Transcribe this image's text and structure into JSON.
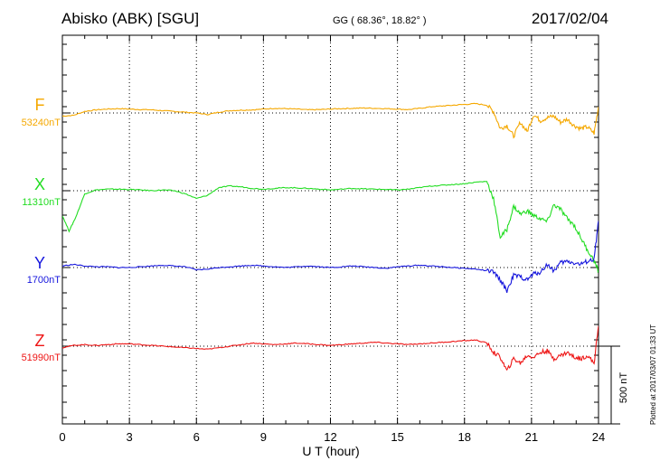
{
  "header": {
    "station": "Abisko (ABK)  [SGU]",
    "coords": "GG ( 68.36°,  18.82° )",
    "date": "2017/02/04"
  },
  "plotted_note": "Plotted at 2017/03/07 01:33 UT",
  "scale_label": "500 nT",
  "chart_data": {
    "type": "line",
    "xlabel": "U T (hour)",
    "xlim": [
      0,
      24
    ],
    "xticks": [
      0,
      3,
      6,
      9,
      12,
      15,
      18,
      21,
      24
    ],
    "scale_bar_nT": 500,
    "grid": "dotted",
    "series": [
      {
        "name": "F",
        "baseline_label": "53240nT",
        "color": "#f5a800",
        "x": [
          0,
          0.5,
          1,
          1.5,
          2,
          2.5,
          3,
          3.5,
          4,
          4.5,
          5,
          5.5,
          6,
          6.5,
          7,
          7.5,
          8,
          8.5,
          9,
          9.5,
          10,
          10.5,
          11,
          11.5,
          12,
          12.5,
          13,
          13.5,
          14,
          14.5,
          15,
          15.5,
          16,
          16.5,
          17,
          17.5,
          18,
          18.5,
          19,
          19.3,
          19.6,
          19.9,
          20.2,
          20.5,
          20.8,
          21.1,
          21.4,
          21.7,
          22,
          22.3,
          22.6,
          22.9,
          23.2,
          23.5,
          23.8,
          24
        ],
        "y": [
          -20,
          -15,
          10,
          20,
          25,
          28,
          25,
          22,
          20,
          15,
          10,
          5,
          0,
          -10,
          5,
          15,
          18,
          20,
          25,
          30,
          28,
          25,
          20,
          22,
          25,
          28,
          30,
          32,
          30,
          28,
          25,
          22,
          30,
          40,
          45,
          50,
          55,
          60,
          50,
          10,
          -100,
          -80,
          -150,
          -60,
          -120,
          -10,
          -50,
          -30,
          -20,
          -60,
          -40,
          -80,
          -100,
          -90,
          -130,
          40
        ]
      },
      {
        "name": "X",
        "baseline_label": "11310nT",
        "color": "#22dd22",
        "x": [
          0,
          0.3,
          0.6,
          1,
          1.5,
          2,
          2.5,
          3,
          3.5,
          4,
          4.5,
          5,
          5.5,
          6,
          6.5,
          7,
          7.5,
          8,
          8.5,
          9,
          9.5,
          10,
          10.5,
          11,
          11.5,
          12,
          12.5,
          13,
          13.5,
          14,
          14.5,
          15,
          15.5,
          16,
          16.5,
          17,
          17.5,
          18,
          18.5,
          19,
          19.3,
          19.6,
          19.9,
          20.2,
          20.5,
          20.8,
          21.1,
          21.4,
          21.7,
          22,
          22.3,
          22.6,
          22.9,
          23.2,
          23.5,
          23.8,
          24
        ],
        "y": [
          -160,
          -260,
          -170,
          -20,
          5,
          10,
          10,
          8,
          5,
          0,
          5,
          0,
          -20,
          -50,
          -30,
          20,
          30,
          25,
          15,
          10,
          15,
          20,
          18,
          15,
          10,
          5,
          10,
          15,
          12,
          10,
          8,
          5,
          10,
          20,
          30,
          35,
          40,
          45,
          55,
          60,
          -50,
          -300,
          -250,
          -100,
          -150,
          -130,
          -160,
          -180,
          -200,
          -90,
          -120,
          -180,
          -220,
          -300,
          -380,
          -450,
          -520
        ]
      },
      {
        "name": "Y",
        "baseline_label": "1700nT",
        "color": "#1515dd",
        "x": [
          0,
          0.5,
          1,
          1.5,
          2,
          2.5,
          3,
          3.5,
          4,
          4.5,
          5,
          5.5,
          6,
          6.5,
          7,
          7.5,
          8,
          8.5,
          9,
          9.5,
          10,
          10.5,
          11,
          11.5,
          12,
          12.5,
          13,
          13.5,
          14,
          14.5,
          15,
          15.5,
          16,
          16.5,
          17,
          17.5,
          18,
          18.5,
          19,
          19.3,
          19.6,
          19.9,
          20.2,
          20.5,
          20.8,
          21.1,
          21.4,
          21.7,
          22,
          22.3,
          22.6,
          22.9,
          23.2,
          23.5,
          23.8,
          24
        ],
        "y": [
          10,
          20,
          10,
          5,
          5,
          0,
          0,
          5,
          10,
          15,
          10,
          5,
          -15,
          -10,
          0,
          5,
          10,
          15,
          10,
          5,
          0,
          5,
          10,
          5,
          0,
          5,
          10,
          5,
          0,
          -5,
          5,
          10,
          15,
          10,
          5,
          0,
          -5,
          -10,
          -20,
          -30,
          -80,
          -150,
          -50,
          -60,
          -80,
          -40,
          -30,
          20,
          -20,
          30,
          40,
          30,
          20,
          40,
          50,
          300
        ]
      },
      {
        "name": "Z",
        "baseline_label": "51990nT",
        "color": "#ee1515",
        "x": [
          0,
          0.5,
          1,
          1.5,
          2,
          2.5,
          3,
          3.5,
          4,
          4.5,
          5,
          5.5,
          6,
          6.5,
          7,
          7.5,
          8,
          8.5,
          9,
          9.5,
          10,
          10.5,
          11,
          11.5,
          12,
          12.5,
          13,
          13.5,
          14,
          14.5,
          15,
          15.5,
          16,
          16.5,
          17,
          17.5,
          18,
          18.5,
          19,
          19.3,
          19.6,
          19.9,
          20.2,
          20.5,
          20.8,
          21.1,
          21.4,
          21.7,
          22,
          22.3,
          22.6,
          22.9,
          23.2,
          23.5,
          23.8,
          24
        ],
        "y": [
          -10,
          5,
          10,
          5,
          10,
          15,
          15,
          10,
          5,
          0,
          -5,
          -10,
          -15,
          -20,
          -10,
          0,
          10,
          20,
          15,
          10,
          15,
          20,
          15,
          10,
          5,
          10,
          15,
          20,
          25,
          20,
          15,
          10,
          15,
          20,
          25,
          30,
          35,
          40,
          20,
          -40,
          -70,
          -160,
          -80,
          -110,
          -60,
          -70,
          -40,
          -30,
          -80,
          -60,
          -40,
          -70,
          -80,
          -60,
          -110,
          130
        ]
      }
    ]
  }
}
